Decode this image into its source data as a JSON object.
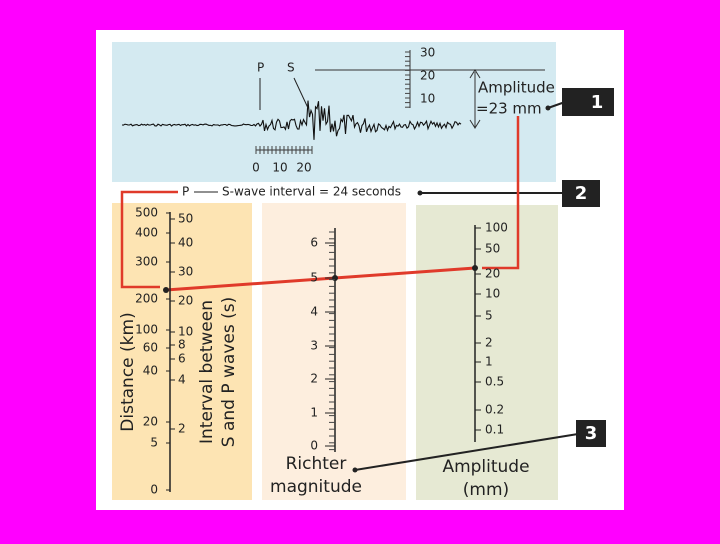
{
  "seismogram": {
    "p_label": "P",
    "s_label": "S",
    "scale": [
      "30",
      "20",
      "10"
    ],
    "time": [
      "0",
      "10",
      "20"
    ],
    "amplitude": [
      "Amplitude",
      "=23 mm"
    ]
  },
  "interval": {
    "p": "P",
    "text": "S-wave interval = 24 seconds"
  },
  "callouts": [
    "1",
    "2",
    "3"
  ],
  "distance": {
    "title": "Distance (km)",
    "labels": [
      "500",
      "400",
      "300",
      "200",
      "100",
      "60",
      "40",
      "20",
      "5",
      "0"
    ]
  },
  "sp_interval": {
    "title": [
      "Interval between",
      "S and P waves (s)"
    ],
    "labels": [
      "50",
      "40",
      "30",
      "20",
      "10",
      "8",
      "6",
      "4",
      "2"
    ]
  },
  "magnitude": {
    "title": [
      "Richter",
      "magnitude"
    ],
    "labels": [
      "6",
      "5",
      "4",
      "3",
      "2",
      "1",
      "0"
    ]
  },
  "amplitude": {
    "title": [
      "Amplitude",
      "(mm)"
    ],
    "labels": [
      "100",
      "50",
      "20",
      "10",
      "5",
      "2",
      "1",
      "0.5",
      "0.2",
      "0.1"
    ]
  }
}
